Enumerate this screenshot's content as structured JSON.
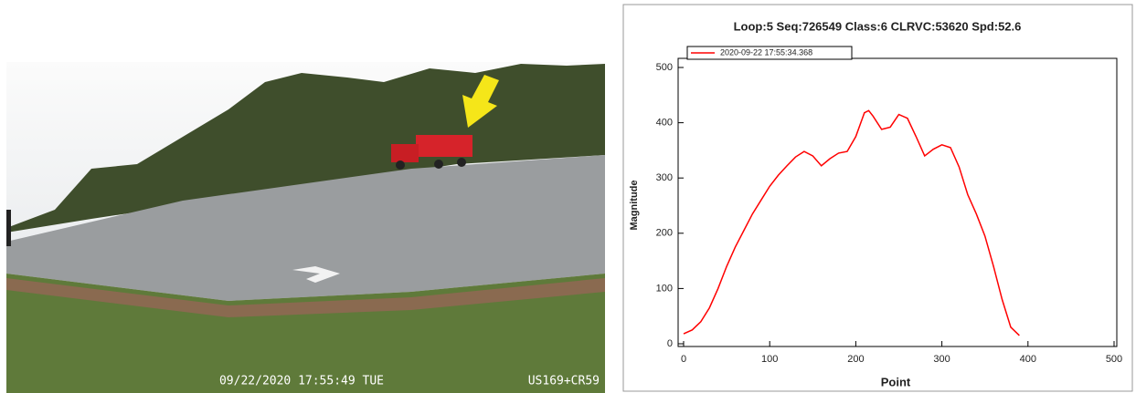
{
  "photo": {
    "timestamp": "09/22/2020 17:55:49 TUE",
    "location": "US169+CR59"
  },
  "chart_data": {
    "type": "line",
    "title": "Loop:5 Seq:726549 Class:6 CLRVC:53620 Spd:52.6",
    "x_label": "Point",
    "y_label": "Magnitude",
    "x": [
      0,
      10,
      20,
      30,
      40,
      50,
      60,
      70,
      80,
      90,
      100,
      110,
      120,
      130,
      140,
      150,
      160,
      170,
      180,
      190,
      200,
      210,
      215,
      220,
      230,
      240,
      250,
      260,
      270,
      280,
      290,
      300,
      310,
      320,
      330,
      340,
      350,
      360,
      370,
      380,
      390
    ],
    "series": [
      {
        "name": "2020-09-22 17:55:34.368",
        "color": "#ff0000",
        "values": [
          18,
          25,
          40,
          65,
          100,
          140,
          175,
          205,
          235,
          260,
          285,
          305,
          322,
          338,
          348,
          340,
          322,
          335,
          345,
          348,
          375,
          418,
          422,
          412,
          388,
          392,
          415,
          408,
          375,
          340,
          352,
          360,
          355,
          320,
          270,
          235,
          195,
          140,
          80,
          30,
          15
        ]
      }
    ],
    "xlim": [
      0,
      500
    ],
    "ylim": [
      0,
      500
    ],
    "xticks": [
      0,
      100,
      200,
      300,
      400,
      500
    ],
    "yticks": [
      0,
      100,
      200,
      300,
      400,
      500
    ],
    "legend": "top-left"
  }
}
